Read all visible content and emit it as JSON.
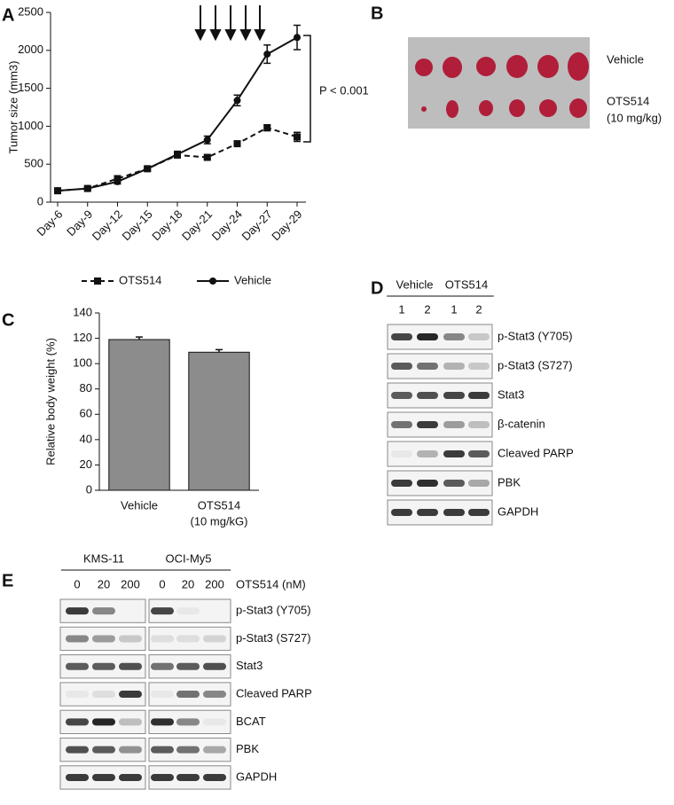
{
  "panel_labels": [
    "A",
    "B",
    "C",
    "D",
    "E"
  ],
  "chart_data": [
    {
      "type": "line",
      "y_label": "Tumor size (mm3)",
      "categories": [
        "Day-6",
        "Day-9",
        "Day-12",
        "Day-15",
        "Day-18",
        "Day-21",
        "Day-24",
        "Day-27",
        "Day-29"
      ],
      "series": [
        {
          "name": "OTS514",
          "color": "#111111",
          "dash": true,
          "marker": "square",
          "values": [
            150,
            180,
            310,
            440,
            620,
            590,
            770,
            980,
            860
          ],
          "errors": [
            20,
            20,
            30,
            20,
            30,
            20,
            30,
            40,
            60
          ]
        },
        {
          "name": "Vehicle",
          "color": "#111111",
          "dash": false,
          "marker": "circle",
          "values": [
            150,
            180,
            270,
            440,
            630,
            820,
            1340,
            1950,
            2170
          ],
          "errors": [
            20,
            20,
            30,
            30,
            40,
            50,
            70,
            120,
            160
          ]
        }
      ],
      "ylim": [
        0,
        2500
      ],
      "yticks": [
        0,
        500,
        1000,
        1500,
        2000,
        2500
      ],
      "legend": "bottom",
      "annotation": "P < 0.001"
    },
    {
      "type": "bar",
      "y_label": "Relative body weight (%)",
      "categories": [
        [
          "Vehicle"
        ],
        [
          "OTS514",
          "(10 mg/kG)"
        ]
      ],
      "values": [
        119,
        109
      ],
      "errors": [
        2,
        2
      ],
      "color": "#8c8c8c",
      "ylim": [
        0,
        140
      ],
      "yticks": [
        0,
        20,
        40,
        60,
        80,
        100,
        120,
        140
      ]
    }
  ],
  "photo": {
    "rows": [
      [
        "Vehicle"
      ],
      [
        "OTS514",
        "(10 mg/kg)"
      ]
    ]
  },
  "blot_d": {
    "groups": [
      {
        "name": "Vehicle",
        "lanes": [
          "1",
          "2"
        ]
      },
      {
        "name": "OTS514",
        "lanes": [
          "1",
          "2"
        ]
      }
    ],
    "rows": [
      "p-Stat3 (Y705)",
      "p-Stat3 (S727)",
      "Stat3",
      "β-catenin",
      "Cleaved PARP",
      "PBK",
      "GAPDH"
    ]
  },
  "blot_e": {
    "groups": [
      {
        "name": "KMS-11",
        "lanes": [
          "0",
          "20",
          "200"
        ]
      },
      {
        "name": "OCI-My5",
        "lanes": [
          "0",
          "20",
          "200"
        ]
      }
    ],
    "lane_unit": "OTS514 (nM)",
    "rows": [
      "p-Stat3 (Y705)",
      "p-Stat3 (S727)",
      "Stat3",
      "Cleaved PARP",
      "BCAT",
      "PBK",
      "GAPDH"
    ]
  }
}
